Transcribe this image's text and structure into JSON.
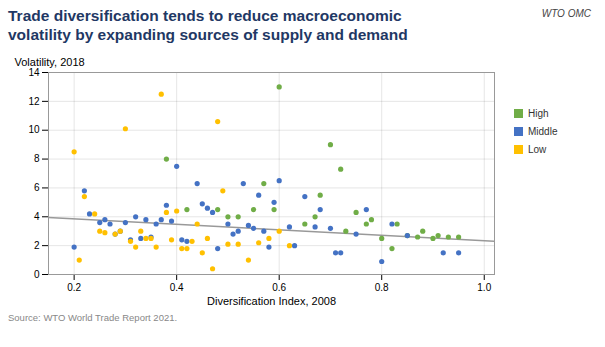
{
  "chart_data": {
    "type": "scatter",
    "title": "Trade diversification tends to reduce macroeconomic\nvolatility by expanding sources of supply and demand",
    "xlabel": "Diversification Index, 2008",
    "ylabel": "Volatility, 2018",
    "source": "Source: WTO World Trade Report 2021.",
    "annotations": [
      "WTO OMC"
    ],
    "title_color": "#1f3864",
    "xlim": [
      0.15,
      1.02
    ],
    "ylim": [
      0,
      14
    ],
    "xticks": [
      0.2,
      0.4,
      0.6,
      0.8,
      {
        "value": 1.0,
        "label": "1.0"
      }
    ],
    "yticks": [
      0,
      2,
      4,
      6,
      8,
      10,
      12,
      14
    ],
    "grid": true,
    "legend": "right",
    "series": [
      {
        "name": "High",
        "color": "#70ad47",
        "x": [
          0.38,
          0.42,
          0.48,
          0.5,
          0.52,
          0.55,
          0.57,
          0.59,
          0.6,
          0.65,
          0.67,
          0.68,
          0.7,
          0.72,
          0.73,
          0.75,
          0.77,
          0.78,
          0.8,
          0.82,
          0.83,
          0.85,
          0.87,
          0.88,
          0.9,
          0.91,
          0.93,
          0.95
        ],
        "values": [
          8.0,
          4.5,
          4.5,
          4.0,
          4.0,
          4.5,
          6.3,
          4.5,
          13.0,
          3.5,
          4.0,
          5.5,
          9.0,
          7.3,
          3.0,
          4.3,
          3.5,
          3.8,
          2.5,
          1.8,
          3.5,
          2.7,
          2.6,
          3.0,
          2.5,
          2.7,
          2.6,
          2.6
        ]
      },
      {
        "name": "Middle",
        "color": "#4472c4",
        "x": [
          0.2,
          0.22,
          0.23,
          0.25,
          0.26,
          0.27,
          0.28,
          0.29,
          0.3,
          0.31,
          0.32,
          0.33,
          0.34,
          0.35,
          0.36,
          0.37,
          0.38,
          0.39,
          0.4,
          0.41,
          0.42,
          0.44,
          0.45,
          0.46,
          0.47,
          0.48,
          0.5,
          0.51,
          0.52,
          0.53,
          0.54,
          0.55,
          0.56,
          0.57,
          0.58,
          0.59,
          0.6,
          0.62,
          0.63,
          0.65,
          0.67,
          0.68,
          0.7,
          0.71,
          0.72,
          0.75,
          0.77,
          0.8,
          0.82,
          0.85,
          0.92,
          0.95
        ],
        "values": [
          1.9,
          5.8,
          4.2,
          3.6,
          3.8,
          3.5,
          2.8,
          3.0,
          3.6,
          2.4,
          4.0,
          2.5,
          3.8,
          2.6,
          3.5,
          3.8,
          4.8,
          3.7,
          7.5,
          2.4,
          2.3,
          6.3,
          4.9,
          4.6,
          4.3,
          1.8,
          3.5,
          2.8,
          3.0,
          6.3,
          3.4,
          3.2,
          5.5,
          3.0,
          1.9,
          5.0,
          6.5,
          3.3,
          2.0,
          5.4,
          3.3,
          4.5,
          3.2,
          1.5,
          1.5,
          2.8,
          4.5,
          0.9,
          3.5,
          2.7,
          1.5,
          1.5
        ]
      },
      {
        "name": "Low",
        "color": "#ffc000",
        "x": [
          0.2,
          0.21,
          0.22,
          0.24,
          0.25,
          0.26,
          0.28,
          0.29,
          0.3,
          0.31,
          0.32,
          0.33,
          0.34,
          0.35,
          0.36,
          0.37,
          0.38,
          0.39,
          0.4,
          0.41,
          0.42,
          0.43,
          0.44,
          0.45,
          0.46,
          0.47,
          0.48,
          0.49,
          0.5,
          0.52,
          0.54,
          0.56,
          0.58,
          0.6,
          0.62
        ],
        "values": [
          8.5,
          1.0,
          5.4,
          4.2,
          3.0,
          2.9,
          2.8,
          3.0,
          10.1,
          2.3,
          1.9,
          3.0,
          2.5,
          2.5,
          1.9,
          12.5,
          4.3,
          2.4,
          4.4,
          1.8,
          1.8,
          2.3,
          3.5,
          1.5,
          2.5,
          0.4,
          10.6,
          5.8,
          2.1,
          2.1,
          1.0,
          2.2,
          2.5,
          3.0,
          2.0
        ]
      }
    ],
    "trend": {
      "type": "line",
      "color": "#999999",
      "x": [
        0.15,
        1.02
      ],
      "values": [
        3.95,
        2.3
      ]
    }
  }
}
